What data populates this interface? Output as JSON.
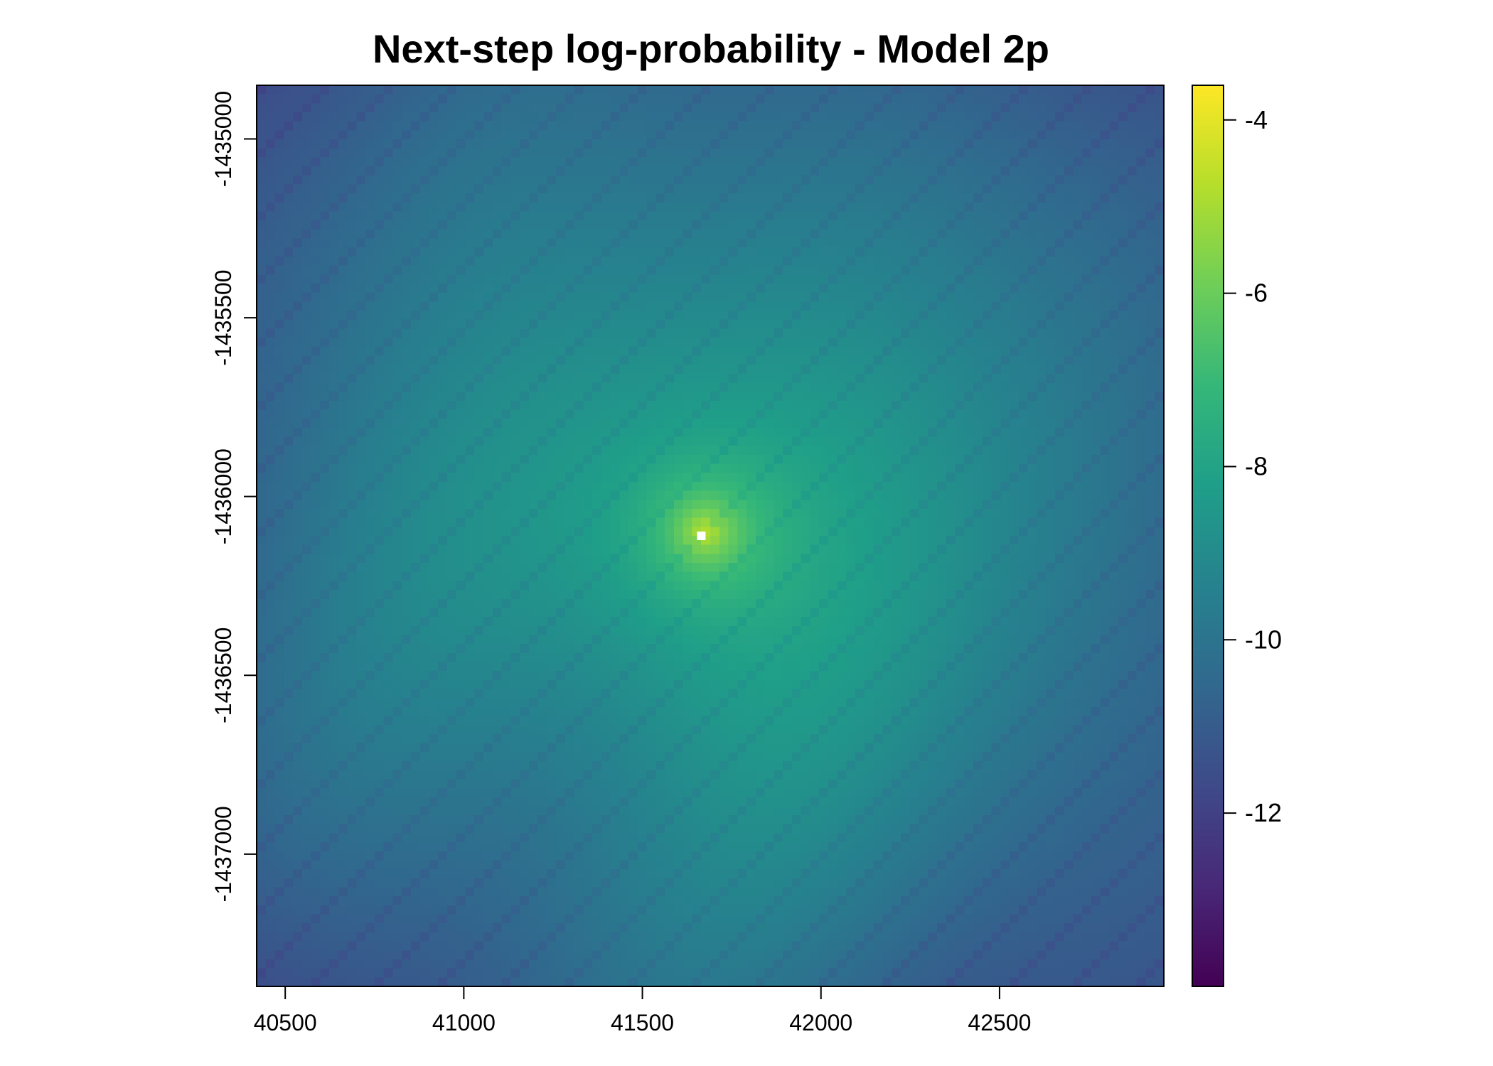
{
  "chart_data": {
    "type": "heatmap",
    "title": "Next-step log-probability - Model 2p",
    "xlabel": "",
    "ylabel": "",
    "xlim": [
      40420,
      42960
    ],
    "ylim": [
      -1437370,
      -1434850
    ],
    "x_ticks": [
      40500,
      41000,
      41500,
      42000,
      42500
    ],
    "x_tick_labels": [
      "40500",
      "41000",
      "41500",
      "42000",
      "42500"
    ],
    "y_ticks": [
      -1435000,
      -1435500,
      -1436000,
      -1436500,
      -1437000
    ],
    "y_tick_labels": [
      "-1435000",
      "-1435500",
      "-1436000",
      "-1436500",
      "-1437000"
    ],
    "color_scale": {
      "name": "viridis",
      "range": [
        -14,
        -3.6
      ],
      "ticks": [
        -4,
        -6,
        -8,
        -10,
        -12
      ],
      "tick_labels": [
        "-4",
        "-6",
        "-8",
        "-10",
        "-12"
      ]
    },
    "grid": false,
    "legend_placement": "right",
    "peak": {
      "x": 41675,
      "y": -1436100,
      "value": -3.6
    },
    "current_location_marker": {
      "x": 41665,
      "y": -1436110,
      "color": "#ffffff"
    },
    "grid_rows": 100,
    "grid_cols": 100
  }
}
